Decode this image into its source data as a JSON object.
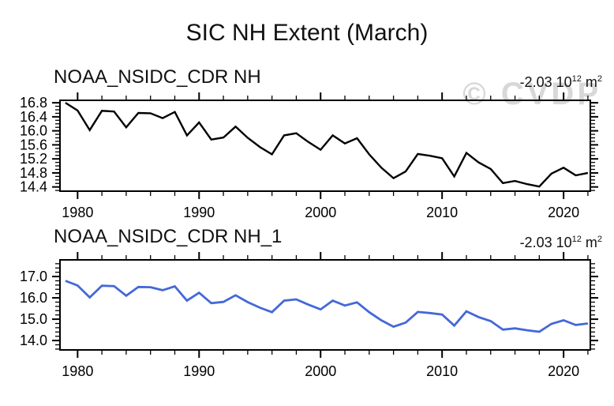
{
  "page": {
    "title": "SIC NH Extent (March)"
  },
  "watermark": {
    "text": "© CVDP",
    "color": "#d8d8d8"
  },
  "chart_data": {
    "type": "line",
    "title": "SIC NH Extent (March)",
    "x_axis": "year",
    "xlim": [
      1978.55,
      2022.2
    ],
    "xticks": [
      1980,
      1990,
      2000,
      2010,
      2020
    ],
    "xtick_labels": [
      "1980",
      "1990",
      "2000",
      "2010",
      "2020"
    ],
    "xminor_step": 2,
    "years": [
      1979,
      1980,
      1981,
      1982,
      1983,
      1984,
      1985,
      1986,
      1987,
      1988,
      1989,
      1990,
      1991,
      1992,
      1993,
      1994,
      1995,
      1996,
      1997,
      1998,
      1999,
      2000,
      2001,
      2002,
      2003,
      2004,
      2005,
      2006,
      2007,
      2008,
      2009,
      2010,
      2011,
      2012,
      2013,
      2014,
      2015,
      2016,
      2017,
      2018,
      2019,
      2020,
      2021,
      2022
    ],
    "panels": [
      {
        "title": "NOAA_NSIDC_CDR NH",
        "trend_text": "-2.03 10",
        "trend_exp": "12",
        "trend_unit": " m",
        "trend_unit_exp": "2",
        "line_color": "#000000",
        "line_width": 2.4,
        "ylim": [
          14.28,
          16.87
        ],
        "yticks": [
          14.4,
          14.8,
          15.2,
          15.6,
          16.0,
          16.4,
          16.8
        ],
        "ytick_labels": [
          "14.4",
          "14.8",
          "15.2",
          "15.6",
          "16.0",
          "16.4",
          "16.8"
        ],
        "yminor_step": 0.1,
        "values": [
          16.8,
          16.58,
          16.02,
          16.57,
          16.55,
          16.1,
          16.51,
          16.5,
          16.36,
          16.54,
          15.87,
          16.24,
          15.75,
          15.81,
          16.12,
          15.8,
          15.54,
          15.33,
          15.87,
          15.93,
          15.68,
          15.46,
          15.87,
          15.64,
          15.79,
          15.33,
          14.95,
          14.65,
          14.84,
          15.34,
          15.29,
          15.22,
          14.7,
          15.37,
          15.1,
          14.91,
          14.51,
          14.57,
          14.48,
          14.41,
          14.78,
          14.95,
          14.73,
          14.8
        ]
      },
      {
        "title": "NOAA_NSIDC_CDR NH_1",
        "trend_text": "-2.03 10",
        "trend_exp": "12",
        "trend_unit": " m",
        "trend_unit_exp": "2",
        "line_color": "#4468d8",
        "line_width": 2.8,
        "ylim": [
          13.56,
          17.78
        ],
        "yticks": [
          14.0,
          15.0,
          16.0,
          17.0
        ],
        "ytick_labels": [
          "14.0",
          "15.0",
          "16.0",
          "17.0"
        ],
        "yminor_step": 0.2,
        "values": [
          16.8,
          16.58,
          16.02,
          16.57,
          16.55,
          16.1,
          16.51,
          16.5,
          16.36,
          16.54,
          15.87,
          16.24,
          15.75,
          15.81,
          16.12,
          15.8,
          15.54,
          15.33,
          15.87,
          15.93,
          15.68,
          15.46,
          15.87,
          15.64,
          15.79,
          15.33,
          14.95,
          14.65,
          14.84,
          15.34,
          15.29,
          15.22,
          14.7,
          15.37,
          15.1,
          14.91,
          14.51,
          14.57,
          14.48,
          14.41,
          14.78,
          14.95,
          14.73,
          14.8
        ]
      }
    ]
  }
}
